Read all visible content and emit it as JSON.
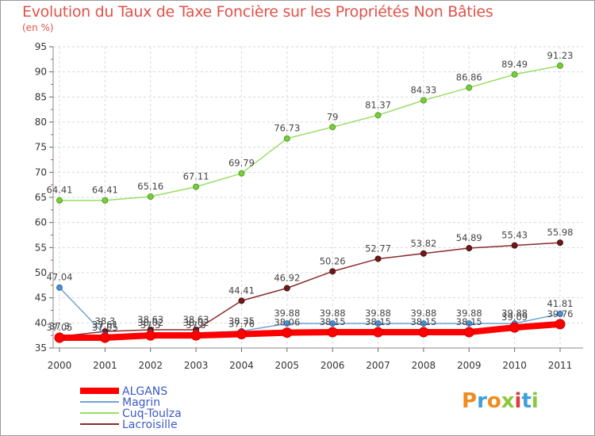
{
  "chart_data": {
    "type": "line",
    "title": "Evolution du Taux de Taxe Foncière sur les Propriétés Non Bâties",
    "subtitle": "(en %)",
    "xlabel": "",
    "ylabel": "",
    "x": [
      "2000",
      "2001",
      "2002",
      "2003",
      "2004",
      "2005",
      "2006",
      "2007",
      "2008",
      "2009",
      "2010",
      "2011"
    ],
    "yticks": [
      35,
      40,
      45,
      50,
      55,
      60,
      65,
      70,
      75,
      80,
      85,
      90,
      95
    ],
    "ylim": [
      35,
      95
    ],
    "grid": true,
    "legend_position": "bottom-left",
    "series": [
      {
        "name": "ALGANS",
        "color": "#ff0000",
        "values": [
          37.05,
          37.05,
          37.5,
          37.5,
          37.76,
          38.06,
          38.15,
          38.15,
          38.15,
          38.15,
          39.09,
          39.76
        ],
        "labels": [
          "37.05",
          "37.05",
          "37.5",
          "37.5",
          "37.76",
          "38.06",
          "38.15",
          "38.15",
          "38.15",
          "38.15",
          "39.09",
          "39.76"
        ]
      },
      {
        "name": "Magrin",
        "color": "#6fa4d8",
        "values": [
          47.04,
          37.61,
          38.02,
          38.02,
          38.35,
          39.88,
          39.88,
          39.88,
          39.88,
          39.88,
          39.88,
          41.81
        ],
        "labels": [
          "47.04",
          "37.61",
          "38.02",
          "38.02",
          "38.35",
          "39.88",
          "39.88",
          "39.88",
          "39.88",
          "39.88",
          "39.88",
          "41.81"
        ]
      },
      {
        "name": "Cuq-Toulza",
        "color": "#99dd66",
        "values": [
          64.41,
          64.41,
          65.16,
          67.11,
          69.79,
          76.73,
          79,
          81.37,
          84.33,
          86.86,
          89.49,
          91.23
        ],
        "labels": [
          "64.41",
          "64.41",
          "65.16",
          "67.11",
          "69.79",
          "76.73",
          "79",
          "81.37",
          "84.33",
          "86.86",
          "89.49",
          "91.23"
        ]
      },
      {
        "name": "Lacroisille",
        "color": "#8b2a2a",
        "values": [
          37.3,
          38.3,
          38.63,
          38.63,
          44.41,
          46.92,
          50.26,
          52.77,
          53.82,
          54.89,
          55.43,
          55.98
        ],
        "labels": [
          "37.3",
          "38.3",
          "38.63",
          "38.63",
          "44.41",
          "46.92",
          "50.26",
          "52.77",
          "53.82",
          "54.89",
          "55.43",
          "55.98"
        ]
      }
    ]
  },
  "logo": {
    "text": "Proxiti"
  }
}
